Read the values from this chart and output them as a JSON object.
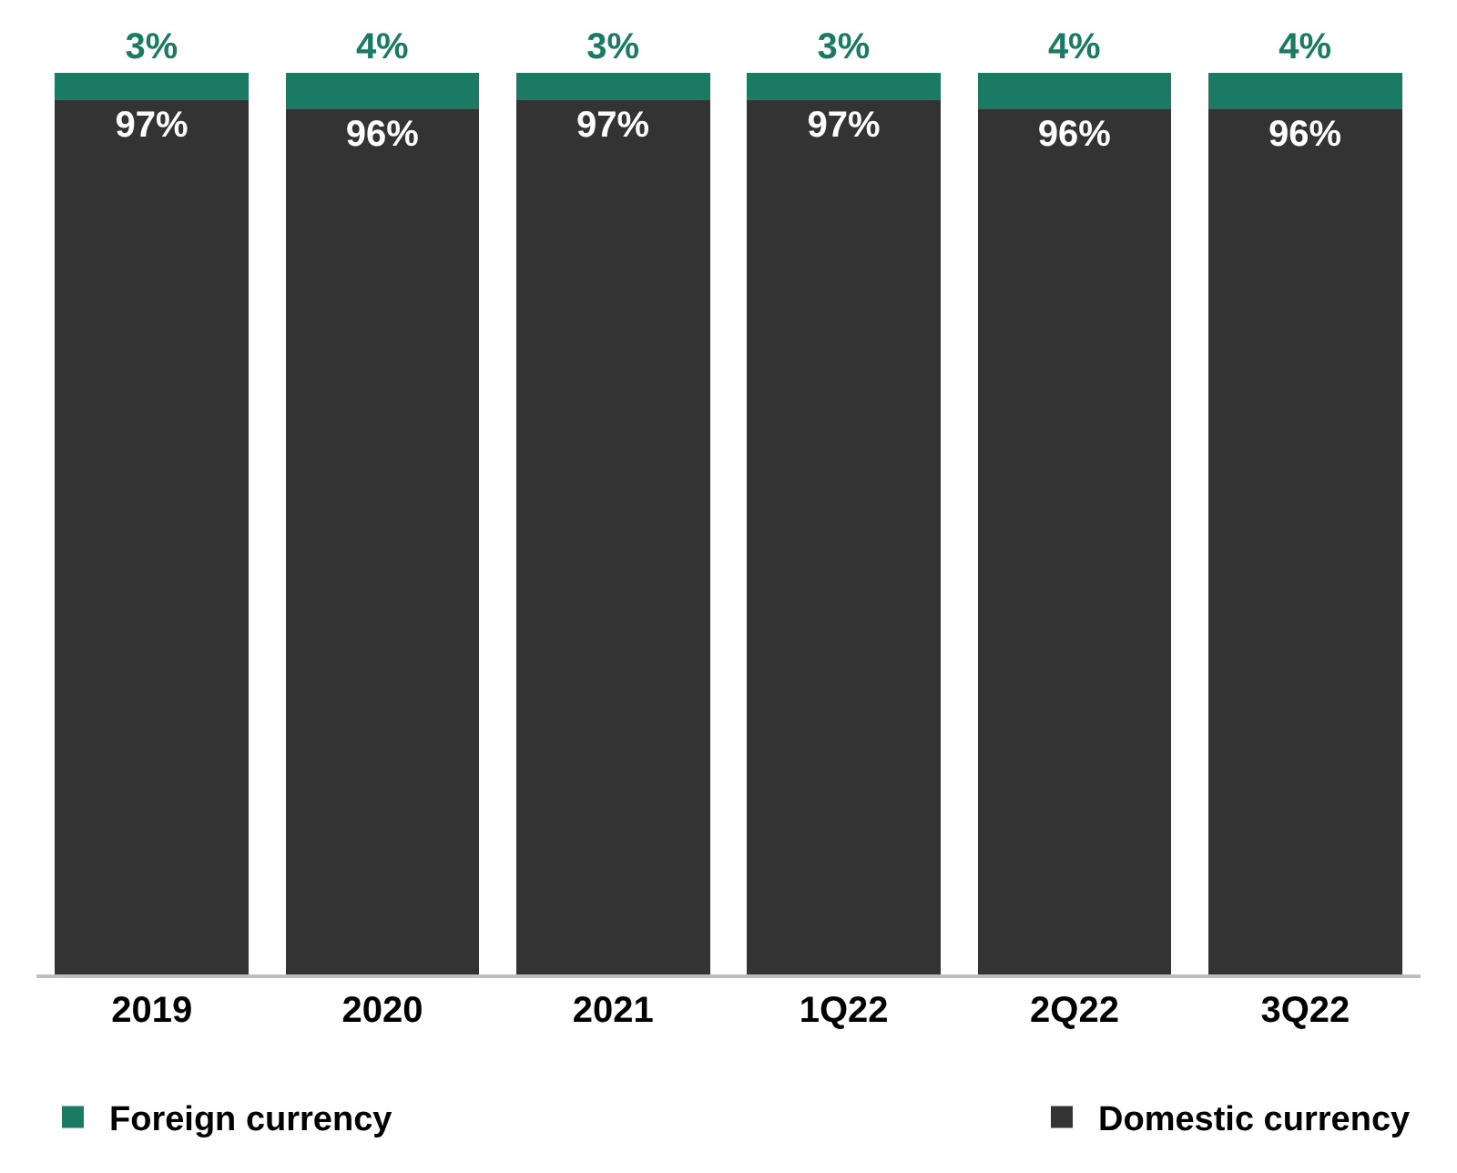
{
  "chart_data": {
    "type": "bar",
    "stacked": true,
    "categories": [
      "2019",
      "2020",
      "2021",
      "1Q22",
      "2Q22",
      "3Q22"
    ],
    "series": [
      {
        "name": "Domestic currency",
        "color": "#333333",
        "values": [
          97,
          96,
          97,
          97,
          96,
          96
        ],
        "value_labels": [
          "97%",
          "96%",
          "97%",
          "97%",
          "96%",
          "96%"
        ]
      },
      {
        "name": "Foreign currency",
        "color": "#1b7a63",
        "values": [
          3,
          4,
          3,
          3,
          4,
          4
        ],
        "value_labels": [
          "3%",
          "4%",
          "3%",
          "3%",
          "4%",
          "4%"
        ]
      }
    ],
    "legend": "bottom"
  }
}
